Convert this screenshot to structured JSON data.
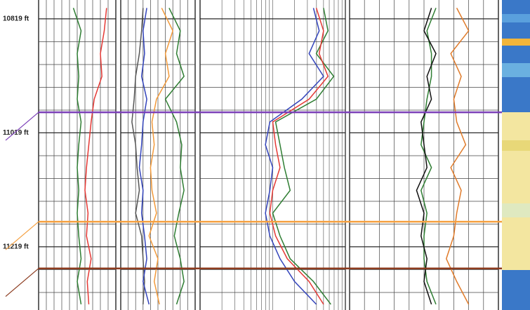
{
  "chart_data": {
    "type": "well-log",
    "ylim": [
      10786,
      11330
    ],
    "yticks": [
      {
        "value": 10819,
        "label": "10819 ft"
      },
      {
        "value": 11019,
        "label": "11019 ft"
      },
      {
        "value": 11219,
        "label": "11219 ft"
      }
    ],
    "depths": [
      10800,
      10840,
      10880,
      10920,
      10960,
      11000,
      11040,
      11080,
      11120,
      11160,
      11200,
      11240,
      11280,
      11320
    ],
    "tops": [
      {
        "depth": 10983,
        "color": "#7b3fb8"
      },
      {
        "depth": 11175,
        "color": "#f5a040"
      },
      {
        "depth": 11257,
        "color": "#8b3a1e"
      }
    ],
    "tracks": [
      {
        "xlim": [
          0,
          100
        ],
        "series": [
          {
            "color": "#2e7d32",
            "values": [
              45,
              55,
              50,
              52,
              50,
              55,
              52,
              50,
              52,
              50,
              52,
              55,
              50,
              55
            ]
          },
          {
            "color": "#e53935",
            "values": [
              88,
              85,
              80,
              82,
              72,
              68,
              65,
              62,
              60,
              64,
              62,
              68,
              63,
              65
            ]
          }
        ]
      },
      {
        "xlim": [
          0,
          100
        ],
        "series": [
          {
            "color": "#555555",
            "values": [
              30,
              28,
              25,
              20,
              18,
              15,
              20,
              22,
              25,
              20,
              28,
              30,
              32,
              30
            ]
          },
          {
            "color": "#f29a3a",
            "values": [
              55,
              70,
              60,
              65,
              48,
              42,
              45,
              40,
              42,
              48,
              38,
              50,
              45,
              52
            ]
          },
          {
            "color": "#2e7d32",
            "values": [
              65,
              80,
              75,
              85,
              60,
              75,
              82,
              80,
              85,
              78,
              72,
              80,
              85,
              75
            ]
          },
          {
            "color": "#3344bb",
            "values": [
              35,
              30,
              32,
              28,
              35,
              30,
              28,
              25,
              30,
              28,
              32,
              35,
              30,
              38
            ]
          }
        ]
      },
      {
        "xlim": [
          0,
          100
        ],
        "series": [
          {
            "color": "#2e7d32",
            "values": [
              85,
              88,
              80,
              92,
              80,
              52,
              55,
              58,
              62,
              50,
              55,
              62,
              78,
              90
            ]
          },
          {
            "color": "#e53935",
            "values": [
              80,
              85,
              82,
              88,
              75,
              50,
              52,
              55,
              50,
              48,
              52,
              60,
              75,
              85
            ]
          },
          {
            "color": "#3344bb",
            "values": [
              78,
              82,
              75,
              85,
              70,
              48,
              45,
              50,
              48,
              45,
              48,
              55,
              65,
              80
            ]
          }
        ]
      },
      {
        "xlim": [
          0,
          100
        ],
        "series": [
          {
            "color": "#e07b2a",
            "values": [
              72,
              80,
              68,
              75,
              70,
              72,
              78,
              68,
              75,
              72,
              70,
              65,
              72,
              80
            ]
          },
          {
            "color": "#2e7d32",
            "values": [
              58,
              52,
              55,
              55,
              52,
              50,
              48,
              55,
              48,
              52,
              50,
              50,
              52,
              58
            ]
          },
          {
            "color": "#111111",
            "values": [
              55,
              50,
              58,
              52,
              55,
              48,
              50,
              52,
              45,
              50,
              48,
              52,
              50,
              55
            ]
          }
        ]
      }
    ]
  }
}
